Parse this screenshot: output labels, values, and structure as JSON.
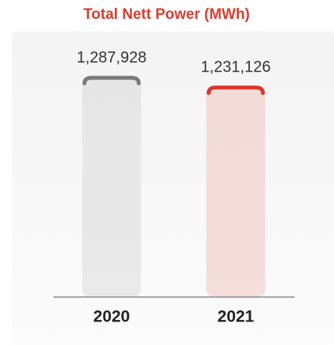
{
  "chart_data": {
    "type": "bar",
    "title": "Total Nett Power (MWh)",
    "categories": [
      "2020",
      "2021"
    ],
    "values": [
      1287928,
      1231126
    ],
    "value_labels": [
      "1,287,928",
      "1,231,126"
    ],
    "colors": [
      "#7a7a7a",
      "#d93a2e"
    ]
  }
}
